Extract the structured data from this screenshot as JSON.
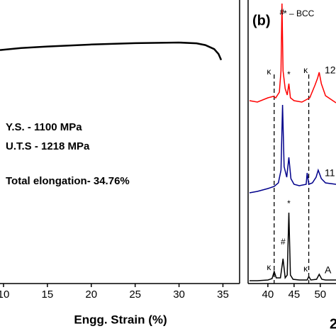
{
  "chart_data": [
    {
      "type": "line",
      "xlabel": "Engg. Strain (%)",
      "xlim": [
        9.6,
        36.9
      ],
      "ylim": [
        0,
        1433
      ],
      "xticks": [
        10,
        15,
        20,
        25,
        30,
        35
      ],
      "annotations": [
        "Y.S. - 1100 MPa",
        "U.T.S - 1218 MPa",
        "Total elongation- 34.76%"
      ],
      "series": [
        {
          "color": "#000000",
          "x": [
            9.6,
            12,
            15,
            20,
            25,
            30,
            32,
            33,
            34,
            34.5,
            34.8
          ],
          "values": [
            1180,
            1190,
            1198,
            1208,
            1215,
            1218,
            1214,
            1205,
            1185,
            1160,
            1130
          ]
        }
      ]
    },
    {
      "type": "line",
      "panel_label": "(b)",
      "legend_note": "* – BCC",
      "xlabel": "2",
      "xlim": [
        36.5,
        53
      ],
      "ylim": [
        0,
        400
      ],
      "xticks": [
        40,
        45,
        50
      ],
      "reference_lines": [
        41.2,
        47.8
      ],
      "series": [
        {
          "name": "12",
          "color": "#ff0000",
          "x": [
            36.5,
            38,
            40,
            41,
            41.5,
            42.2,
            42.5,
            42.7,
            42.9,
            43.3,
            43.7,
            44.0,
            44.3,
            45,
            46.5,
            48,
            49,
            49.5,
            49.8,
            50.2,
            51,
            53
          ],
          "values": [
            258,
            256,
            262,
            264,
            262,
            270,
            300,
            395,
            300,
            275,
            266,
            282,
            262,
            258,
            256,
            262,
            280,
            290,
            298,
            282,
            265,
            255
          ]
        },
        {
          "name": "11",
          "color": "#00008b",
          "x": [
            36.5,
            38,
            40,
            41.2,
            42,
            42.5,
            42.8,
            43.1,
            43.6,
            44.0,
            44.4,
            45,
            46,
            47.3,
            47.5,
            47.8,
            48.5,
            49.2,
            49.6,
            50.2,
            51,
            53
          ],
          "values": [
            128,
            130,
            134,
            137,
            142,
            160,
            252,
            165,
            150,
            178,
            148,
            140,
            138,
            140,
            156,
            140,
            142,
            150,
            160,
            148,
            142,
            140
          ]
        },
        {
          "name": "A",
          "color": "#000000",
          "x": [
            36.5,
            38,
            40,
            40.8,
            41.2,
            41.6,
            42.4,
            42.9,
            43.3,
            43.7,
            44.0,
            44.3,
            44.8,
            46,
            47.5,
            47.8,
            48.2,
            49.3,
            49.8,
            50.3,
            51,
            53
          ],
          "values": [
            4,
            4,
            5,
            7,
            17,
            8,
            8,
            35,
            8,
            12,
            100,
            12,
            6,
            5,
            5,
            10,
            5,
            6,
            13,
            6,
            5,
            5
          ]
        }
      ],
      "annotations": [
        {
          "text": "#",
          "x": 42.7,
          "y": 382
        },
        {
          "text": "*",
          "x": 44.0,
          "y": 294
        },
        {
          "text": "κ",
          "x": 40.2,
          "y": 298
        },
        {
          "text": "κ",
          "x": 47.2,
          "y": 300
        },
        {
          "text": "κ",
          "x": 40.2,
          "y": 22
        },
        {
          "text": "#",
          "x": 42.9,
          "y": 58
        },
        {
          "text": "*",
          "x": 44.0,
          "y": 112
        },
        {
          "text": "κ",
          "x": 47.2,
          "y": 20
        }
      ]
    }
  ]
}
